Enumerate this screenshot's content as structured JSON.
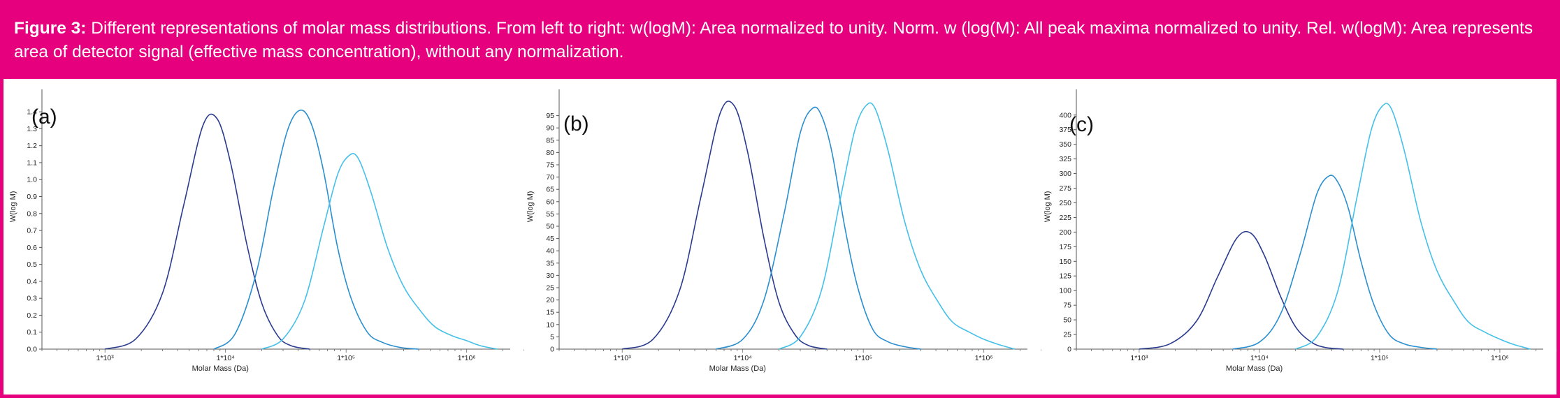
{
  "caption": {
    "figure_label": "Figure 3:",
    "text": "Different representations of molar mass distributions. From left to right: w(logM): Area normalized to unity. Norm. w (log(M): All peak maxima normalized to unity. Rel. w(logM): Area represents area of detector signal (effective mass concentration), without any normalization."
  },
  "colors": {
    "accent": "#e6007e",
    "series": [
      "#2a3b8f",
      "#2a8fd0",
      "#45c0e8"
    ]
  },
  "chart_data": [
    {
      "type": "line",
      "panel_label": "(a)",
      "xlabel": "Molar Mass (Da)",
      "ylabel": "W(log M)",
      "x_scale": "log",
      "xlim": [
        300,
        3000000
      ],
      "ylim": [
        0,
        1.45
      ],
      "x_ticks": [
        1000,
        10000,
        100000,
        1000000
      ],
      "x_tick_labels": [
        "1*10³",
        "1*10⁴",
        "1*10⁵",
        "1*10⁶"
      ],
      "y_ticks": [
        0.0,
        0.1,
        0.2,
        0.3,
        0.4,
        0.5,
        0.6,
        0.7,
        0.8,
        0.9,
        1.0,
        1.1,
        1.2,
        1.3,
        1.4
      ],
      "y_tick_labels": [
        "0.0",
        "0.1",
        "0.2",
        "0.3",
        "0.4",
        "0.5",
        "0.6",
        "0.7",
        "0.8",
        "0.9",
        "1.0",
        "1.1",
        "1.2",
        "1.3",
        "1.4"
      ],
      "series": [
        {
          "x": [
            1000,
            1800,
            3000,
            4500,
            6500,
            8500,
            11000,
            15000,
            20000,
            27000,
            35000,
            50000
          ],
          "y": [
            0.0,
            0.06,
            0.33,
            0.85,
            1.32,
            1.36,
            1.1,
            0.62,
            0.27,
            0.08,
            0.02,
            0.0
          ]
        },
        {
          "x": [
            8000,
            12000,
            18000,
            25000,
            33000,
            42000,
            52000,
            65000,
            85000,
            110000,
            150000,
            200000,
            280000,
            400000
          ],
          "y": [
            0.0,
            0.09,
            0.45,
            0.95,
            1.3,
            1.41,
            1.32,
            1.05,
            0.6,
            0.3,
            0.1,
            0.04,
            0.01,
            0.0
          ]
        },
        {
          "x": [
            20000,
            30000,
            45000,
            65000,
            85000,
            105000,
            125000,
            160000,
            220000,
            300000,
            420000,
            550000,
            750000,
            1000000,
            1300000,
            1800000
          ],
          "y": [
            0.0,
            0.06,
            0.28,
            0.72,
            1.03,
            1.14,
            1.13,
            0.93,
            0.6,
            0.37,
            0.22,
            0.13,
            0.08,
            0.05,
            0.02,
            0.0
          ]
        }
      ]
    },
    {
      "type": "line",
      "panel_label": "(b)",
      "xlabel": "Molar Mass (Da)",
      "ylabel": "W(log M)",
      "x_scale": "log",
      "xlim": [
        300,
        3000000
      ],
      "ylim": [
        0,
        100
      ],
      "x_ticks": [
        1000,
        10000,
        100000,
        1000000
      ],
      "x_tick_labels": [
        "1*10³",
        "1*10⁴",
        "1*10⁵",
        "1*10⁶"
      ],
      "y_ticks": [
        0,
        5,
        10,
        15,
        20,
        25,
        30,
        35,
        40,
        45,
        50,
        55,
        60,
        65,
        70,
        75,
        80,
        85,
        90,
        95
      ],
      "y_tick_labels": [
        "0",
        "5",
        "10",
        "15",
        "20",
        "25",
        "30",
        "35",
        "40",
        "45",
        "50",
        "55",
        "60",
        "65",
        "70",
        "75",
        "80",
        "85",
        "90",
        "95"
      ],
      "series": [
        {
          "x": [
            1000,
            1800,
            3000,
            4500,
            6500,
            8500,
            11000,
            15000,
            20000,
            27000,
            35000,
            50000
          ],
          "y": [
            0,
            4,
            24,
            62,
            96,
            99,
            80,
            45,
            19,
            6,
            1.5,
            0
          ]
        },
        {
          "x": [
            6000,
            10000,
            15000,
            22000,
            30000,
            38000,
            45000,
            55000,
            70000,
            90000,
            120000,
            160000,
            220000,
            300000
          ],
          "y": [
            0,
            4,
            20,
            55,
            88,
            98,
            95,
            80,
            50,
            25,
            8,
            3,
            1,
            0
          ]
        },
        {
          "x": [
            20000,
            30000,
            45000,
            65000,
            85000,
            105000,
            125000,
            160000,
            220000,
            300000,
            420000,
            550000,
            750000,
            1000000,
            1300000,
            1800000
          ],
          "y": [
            0,
            5,
            24,
            62,
            89,
            99,
            98,
            81,
            52,
            32,
            19,
            11,
            7,
            4,
            2,
            0
          ]
        }
      ]
    },
    {
      "type": "line",
      "panel_label": "(c)",
      "xlabel": "Molar Mass (Da)",
      "ylabel": "W(log M)",
      "x_scale": "log",
      "xlim": [
        300,
        3000000
      ],
      "ylim": [
        0,
        420
      ],
      "x_ticks": [
        1000,
        10000,
        100000,
        1000000
      ],
      "x_tick_labels": [
        "1*10³",
        "1*10⁴",
        "1*10⁵",
        "1*10⁶"
      ],
      "y_ticks": [
        0,
        25,
        50,
        75,
        100,
        125,
        150,
        175,
        200,
        225,
        250,
        275,
        300,
        325,
        350,
        375,
        400
      ],
      "y_tick_labels": [
        "0",
        "25",
        "50",
        "75",
        "100",
        "125",
        "150",
        "175",
        "200",
        "225",
        "250",
        "275",
        "300",
        "325",
        "350",
        "375",
        "400"
      ],
      "series": [
        {
          "x": [
            1000,
            1800,
            3000,
            4500,
            6500,
            8500,
            11000,
            15000,
            20000,
            27000,
            35000,
            50000
          ],
          "y": [
            0,
            9,
            48,
            124,
            190,
            198,
            160,
            90,
            38,
            12,
            3,
            0
          ]
        },
        {
          "x": [
            6000,
            10000,
            15000,
            22000,
            30000,
            38000,
            45000,
            55000,
            70000,
            90000,
            120000,
            160000,
            220000,
            300000
          ],
          "y": [
            0,
            12,
            60,
            165,
            265,
            296,
            285,
            240,
            150,
            75,
            25,
            9,
            3,
            0
          ]
        },
        {
          "x": [
            20000,
            30000,
            45000,
            65000,
            85000,
            105000,
            125000,
            160000,
            220000,
            300000,
            420000,
            550000,
            750000,
            1000000,
            1300000,
            1800000
          ],
          "y": [
            0,
            21,
            100,
            261,
            374,
            415,
            411,
            340,
            218,
            134,
            80,
            46,
            29,
            17,
            8,
            0
          ]
        }
      ]
    }
  ]
}
